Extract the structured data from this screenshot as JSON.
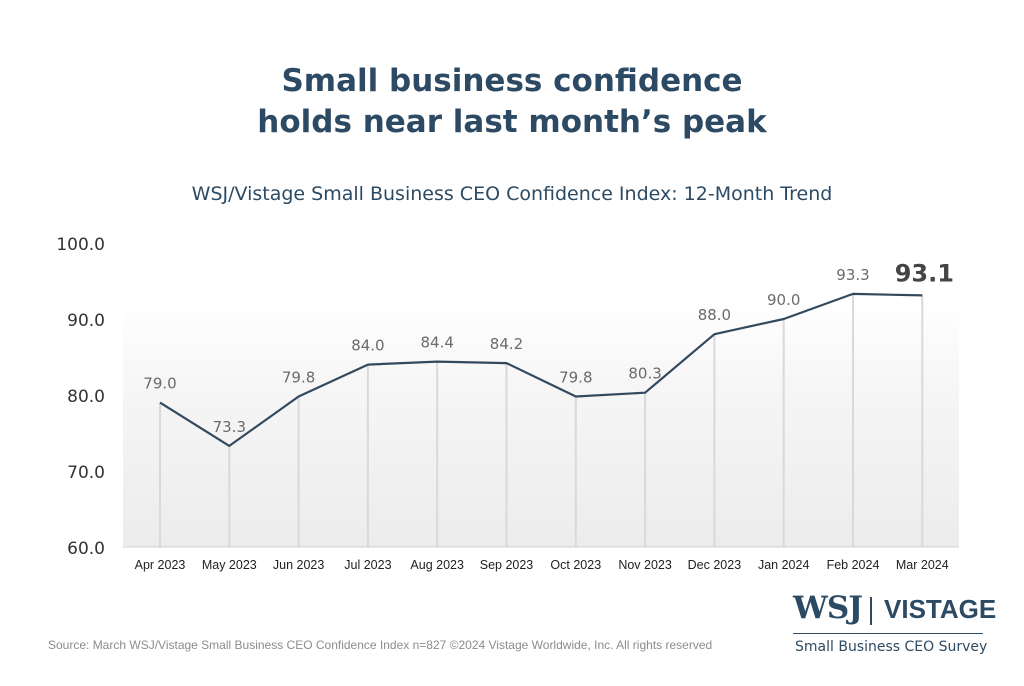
{
  "headline": {
    "line1": "Small business confidence",
    "line2": "holds near last month’s peak"
  },
  "colors": {
    "navy": "#2c4a63",
    "line": "#34495e",
    "grid": "#d9d9d9",
    "label_gray": "#6b6b6b"
  },
  "chart_data": {
    "type": "line",
    "title": "WSJ/Vistage Small Business CEO Confidence Index: 12-Month Trend",
    "xlabel": "",
    "ylabel": "",
    "categories": [
      "Apr 2023",
      "May 2023",
      "Jun 2023",
      "Jul 2023",
      "Aug 2023",
      "Sep 2023",
      "Oct 2023",
      "Nov 2023",
      "Dec 2023",
      "Jan 2024",
      "Feb 2024",
      "Mar 2024"
    ],
    "values": [
      79.0,
      73.3,
      79.8,
      84.0,
      84.4,
      84.2,
      79.8,
      80.3,
      88.0,
      90.0,
      93.3,
      93.1
    ],
    "data_labels": [
      "79.0",
      "73.3",
      "79.8",
      "84.0",
      "84.4",
      "84.2",
      "79.8",
      "80.3",
      "88.0",
      "90.0",
      "93.3",
      "93.1"
    ],
    "ylim": [
      60,
      100
    ],
    "yticks": [
      "60.0",
      "70.0",
      "80.0",
      "90.0",
      "100.0"
    ],
    "ytick_values": [
      60,
      70,
      80,
      90,
      100
    ],
    "highlight_last": true,
    "drop_lines": true
  },
  "footer": {
    "source": "Source: March WSJ/Vistage Small Business CEO Confidence Index n=827 ©2024 Vistage Worldwide, Inc. All rights reserved"
  },
  "logo": {
    "wsj": "WSJ",
    "vistage": "VISTAGE",
    "tagline": "Small Business CEO Survey"
  }
}
